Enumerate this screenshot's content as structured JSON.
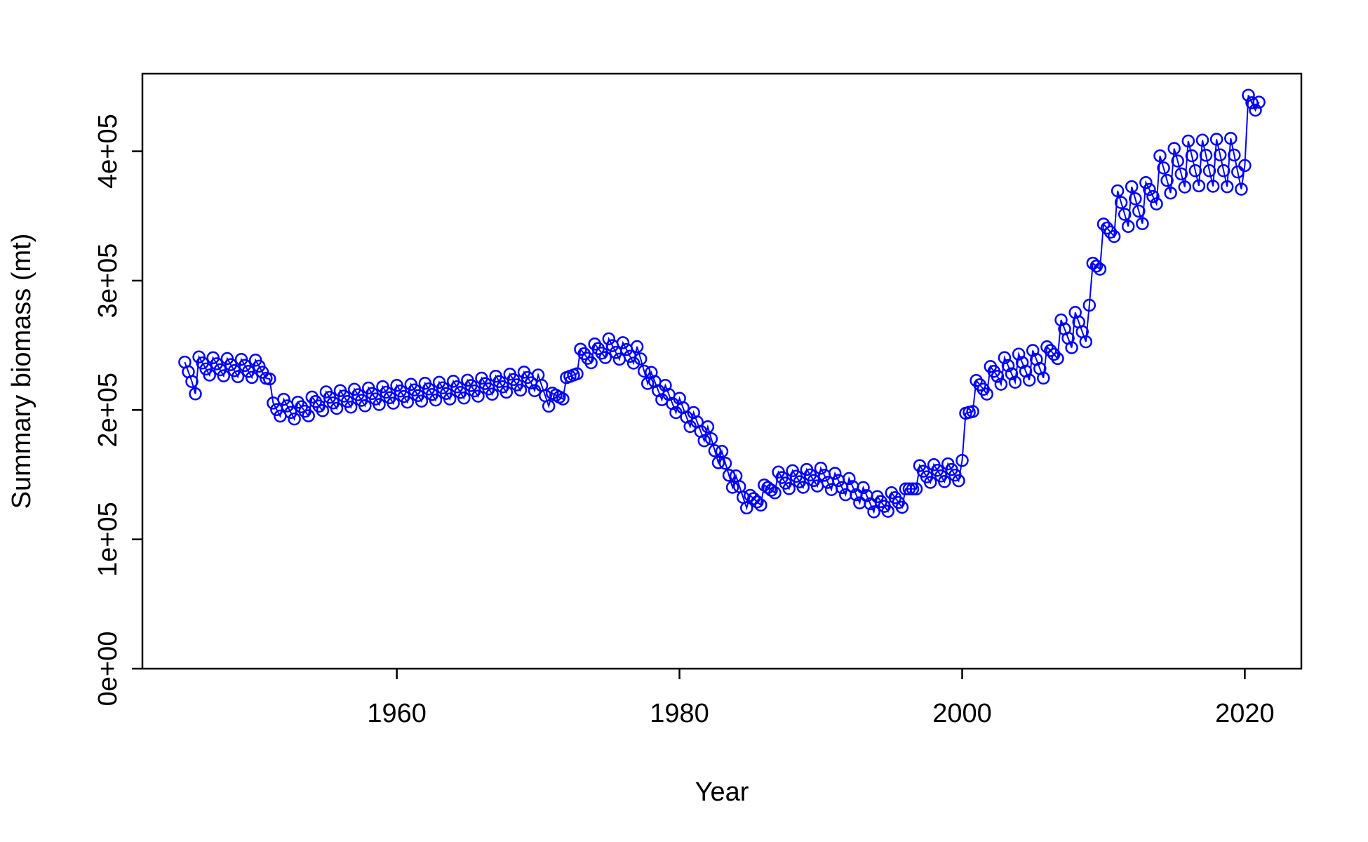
{
  "chart_data": {
    "type": "line",
    "title": "",
    "xlabel": "Year",
    "ylabel": "Summary biomass (mt)",
    "xlim": [
      1942,
      2024
    ],
    "ylim": [
      0,
      460000
    ],
    "x_ticks": [
      1960,
      1980,
      2000,
      2020
    ],
    "x_tick_labels": [
      "1960",
      "1980",
      "2000",
      "2020"
    ],
    "y_ticks": [
      0,
      100000,
      200000,
      300000,
      400000
    ],
    "y_tick_labels": [
      "0e+00",
      "1e+05",
      "2e+05",
      "3e+05",
      "4e+05"
    ],
    "grid": false,
    "legend": "none",
    "series": [
      {
        "color": "#0000ff",
        "marker": "open-circle",
        "keyframes": [
          [
            1945.0,
            233000
          ],
          [
            1945.5,
            222000
          ],
          [
            1945.8,
            213000
          ],
          [
            1946.0,
            232000
          ],
          [
            1950.8,
            229000
          ],
          [
            1951.2,
            201000
          ],
          [
            1953.0,
            197000
          ],
          [
            1955.0,
            205000
          ],
          [
            1960.0,
            210000
          ],
          [
            1965.0,
            214000
          ],
          [
            1969.5,
            221000
          ],
          [
            1970.0,
            218000
          ],
          [
            1971.0,
            204000
          ],
          [
            1972.0,
            216000
          ],
          [
            1973.0,
            238000
          ],
          [
            1975.0,
            246000
          ],
          [
            1977.0,
            240000
          ],
          [
            1978.0,
            220000
          ],
          [
            1980.0,
            200000
          ],
          [
            1982.0,
            178000
          ],
          [
            1984.0,
            140000
          ],
          [
            1985.0,
            125000
          ],
          [
            1986.0,
            133000
          ],
          [
            1987.0,
            143000
          ],
          [
            1990.0,
            146000
          ],
          [
            1992.0,
            138000
          ],
          [
            1994.0,
            124000
          ],
          [
            1996.0,
            130000
          ],
          [
            1997.0,
            148000
          ],
          [
            2000.0,
            150000
          ],
          [
            2000.1,
            188000
          ],
          [
            2001.0,
            211000
          ],
          [
            2002.5,
            226000
          ],
          [
            2006.0,
            233000
          ],
          [
            2007.0,
            253000
          ],
          [
            2009.0,
            263000
          ],
          [
            2009.2,
            303000
          ],
          [
            2010.0,
            325000
          ],
          [
            2011.0,
            350000
          ],
          [
            2013.0,
            355000
          ],
          [
            2014.0,
            375000
          ],
          [
            2016.0,
            385000
          ],
          [
            2019.0,
            385000
          ],
          [
            2020.0,
            383000
          ],
          [
            2020.1,
            442000
          ],
          [
            2021.0,
            432000
          ]
        ]
      }
    ]
  }
}
